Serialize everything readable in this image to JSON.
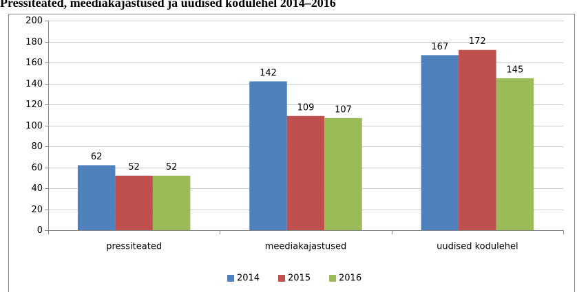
{
  "chart_data": {
    "type": "bar",
    "title": "Pressiteated, meediakajastused ja uudised kodulehel 2014–2016",
    "categories": [
      "pressiteated",
      "meediakajastused",
      "uudised kodulehel"
    ],
    "series": [
      {
        "name": "2014",
        "color": "#4f81bd",
        "values": [
          62,
          142,
          167
        ]
      },
      {
        "name": "2015",
        "color": "#c0504d",
        "values": [
          52,
          109,
          172
        ]
      },
      {
        "name": "2016",
        "color": "#9bbb59",
        "values": [
          52,
          107,
          145
        ]
      }
    ],
    "ylim": [
      0,
      200
    ],
    "yticks": [
      0,
      20,
      40,
      60,
      80,
      100,
      120,
      140,
      160,
      180,
      200
    ],
    "grid": true,
    "legend": "bottom"
  }
}
